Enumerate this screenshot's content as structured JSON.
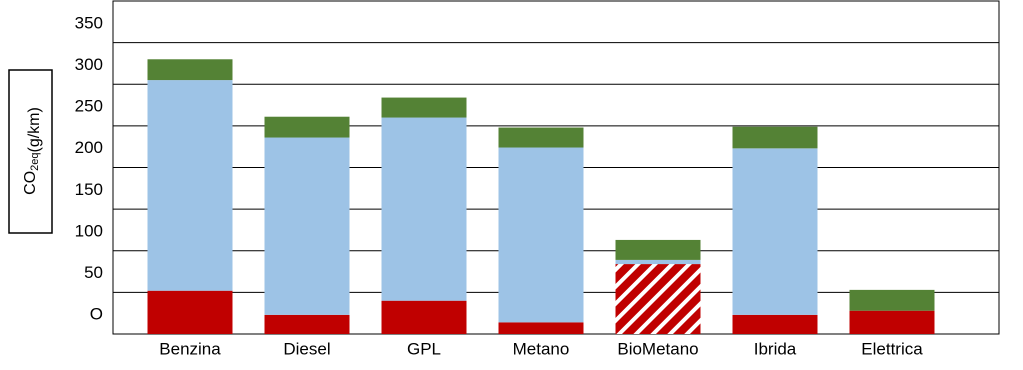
{
  "chart_data": {
    "type": "stacked_bar",
    "ylabel": {
      "main": "CO",
      "sub": "2eq",
      "unit": "(g/km)"
    },
    "categories": [
      "Benzina",
      "Diesel",
      "GPL",
      "Metano",
      "BioMetano",
      "Ibrida",
      "Elettrica"
    ],
    "series": [
      {
        "color": "#c00000",
        "values": [
          52,
          23,
          40,
          14,
          84,
          23,
          28
        ],
        "hatch": [
          4
        ]
      },
      {
        "color": "#9dc3e6",
        "values": [
          253,
          213,
          220,
          210,
          5,
          200,
          0
        ]
      },
      {
        "color": "#548235",
        "values": [
          25,
          25,
          24,
          24,
          24,
          26,
          25
        ]
      }
    ],
    "ylim": [
      0,
      400
    ],
    "yticks": [
      {
        "value": 0,
        "label": "O"
      },
      50,
      100,
      150,
      200,
      250,
      300,
      350
    ],
    "grid": true
  }
}
